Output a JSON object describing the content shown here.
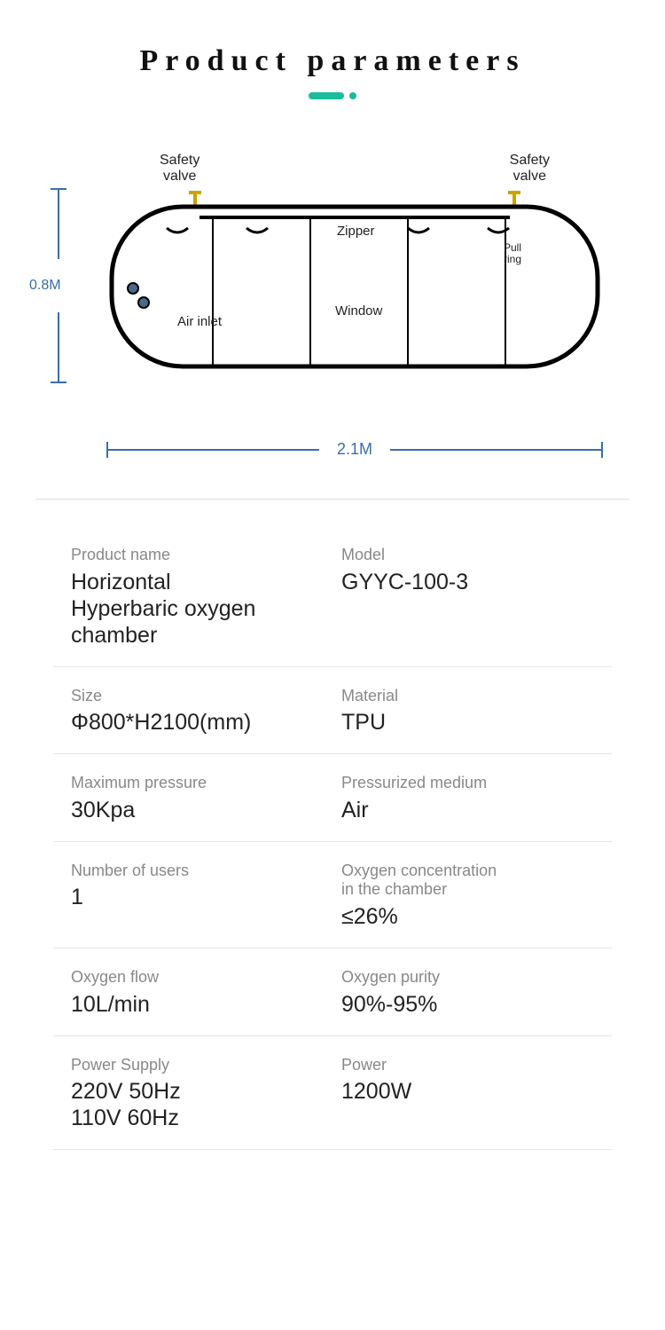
{
  "title": "Product parameters",
  "diagram": {
    "height_label": "0.8M",
    "width_label": "2.1M",
    "safety_valve_left": "Safety\nvalve",
    "safety_valve_right": "Safety\nvalve",
    "zipper": "Zipper",
    "pull_ring": "Pull\nring",
    "air_inlet": "Air inlet",
    "window": "Window",
    "colors": {
      "dimension": "#3a6ea8",
      "outline": "#000000",
      "valve": "#c9a400",
      "accent": "#1abc9c"
    }
  },
  "specs": [
    {
      "left_label": "Product name",
      "left_value": "Horizontal\nHyperbaric oxygen chamber",
      "right_label": "Model",
      "right_value": "GYYC-100-3"
    },
    {
      "left_label": "Size",
      "left_value": "Φ800*H2100(mm)",
      "right_label": "Material",
      "right_value": "TPU"
    },
    {
      "left_label": "Maximum pressure",
      "left_value": "30Kpa",
      "right_label": "Pressurized medium",
      "right_value": "Air"
    },
    {
      "left_label": "Number of users",
      "left_value": "1",
      "right_label": "Oxygen concentration\nin the chamber",
      "right_value": "≤26%"
    },
    {
      "left_label": "Oxygen flow",
      "left_value": "10L/min",
      "right_label": "Oxygen purity",
      "right_value": "90%-95%"
    },
    {
      "left_label": "Power Supply",
      "left_value": "220V 50Hz\n110V 60Hz",
      "right_label": "Power",
      "right_value": "1200W"
    }
  ]
}
